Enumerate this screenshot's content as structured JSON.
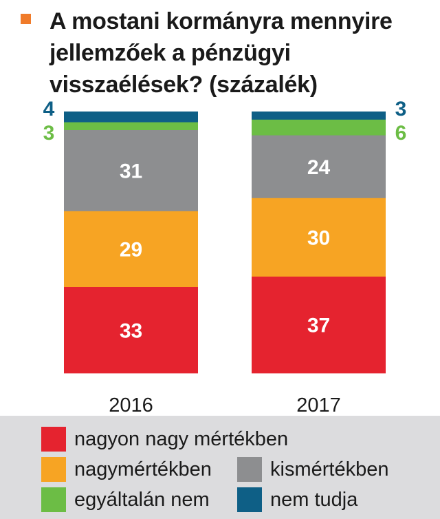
{
  "title": "A mostani kormányra mennyire jellemzőek a pénzügyi visszaélések? (százalék)",
  "colors": {
    "title_marker": "#f07b2a",
    "nagyon_nagy": "#e5232f",
    "nagy": "#f7a423",
    "kis": "#8d8e90",
    "egyaltalan": "#6cbd45",
    "nem_tudja": "#0e5f86",
    "legend_bg": "#dcdcde"
  },
  "chart_data": {
    "type": "bar",
    "stacked": true,
    "title": "A mostani kormányra mennyire jellemzőek a pénzügyi visszaélések? (százalék)",
    "categories": [
      "2016",
      "2017"
    ],
    "ylim": [
      0,
      100
    ],
    "grid": false,
    "legend_position": "bottom",
    "series": [
      {
        "name": "nagyon nagy mértékben",
        "color": "#e5232f",
        "values": [
          33,
          37
        ]
      },
      {
        "name": "nagymértékben",
        "color": "#f7a423",
        "values": [
          29,
          30
        ]
      },
      {
        "name": "kismértékben",
        "color": "#8d8e90",
        "values": [
          31,
          24
        ]
      },
      {
        "name": "egyáltalán nem",
        "color": "#6cbd45",
        "values": [
          3,
          6
        ]
      },
      {
        "name": "nem tudja",
        "color": "#0e5f86",
        "values": [
          4,
          3
        ]
      }
    ]
  },
  "legend": {
    "items": [
      {
        "label": "nagyon nagy mértékben",
        "color": "#e5232f"
      },
      {
        "label": "nagymértékben",
        "color": "#f7a423"
      },
      {
        "label": "kismértékben",
        "color": "#8d8e90"
      },
      {
        "label": "egyáltalán nem",
        "color": "#6cbd45"
      },
      {
        "label": "nem tudja",
        "color": "#0e5f86"
      }
    ]
  }
}
